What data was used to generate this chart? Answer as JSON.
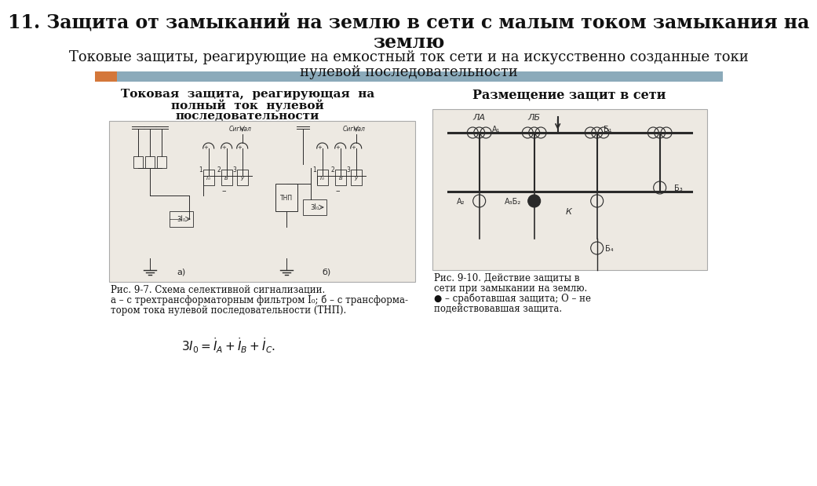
{
  "title_line1": "11. Защита от замыканий на землю в сети с малым током замыкания на",
  "title_line2": "землю",
  "subtitle_line1": "Токовые защиты, реагирующие на емкостный ток сети и на искусственно созданные токи",
  "subtitle_line2": "нулевой последовательности",
  "bar_orange_color": "#d4773a",
  "bar_blue_color": "#8baaba",
  "background_color": "#ffffff",
  "left_heading_line1": "Токовая  защита,  реагирующая  на",
  "left_heading_line2": "полный  ток  нулевой",
  "left_heading_line3": "последовательности",
  "right_heading": "Размещение защит в сети",
  "fig97_caption_line1": "Рис. 9-7. Схема селективной сигнализации.",
  "fig97_caption_line2": "а – с трехтрансформаторным фильтром I₀; б – с трансформа-",
  "fig97_caption_line3": "тором тока нулевой последовательности (ТНП).",
  "fig910_caption_line1": "Рис. 9-10. Действие защиты в",
  "fig910_caption_line2": "сети при замыкании на землю.",
  "fig910_caption_line3": "● – сработавшая защита; О – не",
  "fig910_caption_line4": "подействовавшая защита.",
  "title_fontsize": 17,
  "subtitle_fontsize": 13,
  "heading_fontsize": 11,
  "caption_fontsize": 8.5,
  "diag_bg": "#ede9e2",
  "diag_edge": "#aaaaaa",
  "ink_color": "#2a2a2a"
}
